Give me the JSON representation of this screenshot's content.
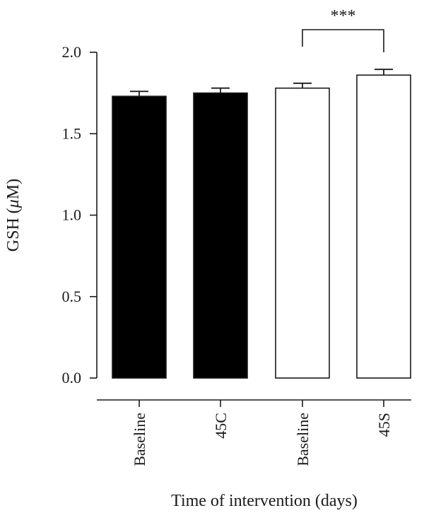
{
  "chart_data": {
    "type": "bar",
    "categories": [
      "Baseline",
      "45C",
      "Baseline",
      "45S"
    ],
    "values": [
      1.73,
      1.75,
      1.78,
      1.86
    ],
    "errors": [
      0.03,
      0.03,
      0.03,
      0.035
    ],
    "bar_fills": [
      "#000000",
      "#000000",
      "#ffffff",
      "#ffffff"
    ],
    "ylabel_prefix": "GSH (",
    "ylabel_unit": "μ",
    "ylabel_suffix": "M)",
    "xlabel": "Time of intervention (days)",
    "ylim": [
      0,
      2.0
    ],
    "yticks": [
      "0.0",
      "0.5",
      "1.0",
      "1.5",
      "2.0"
    ],
    "significance": {
      "from_index": 2,
      "to_index": 3,
      "label": "***"
    },
    "grid": false,
    "legend": "none"
  }
}
